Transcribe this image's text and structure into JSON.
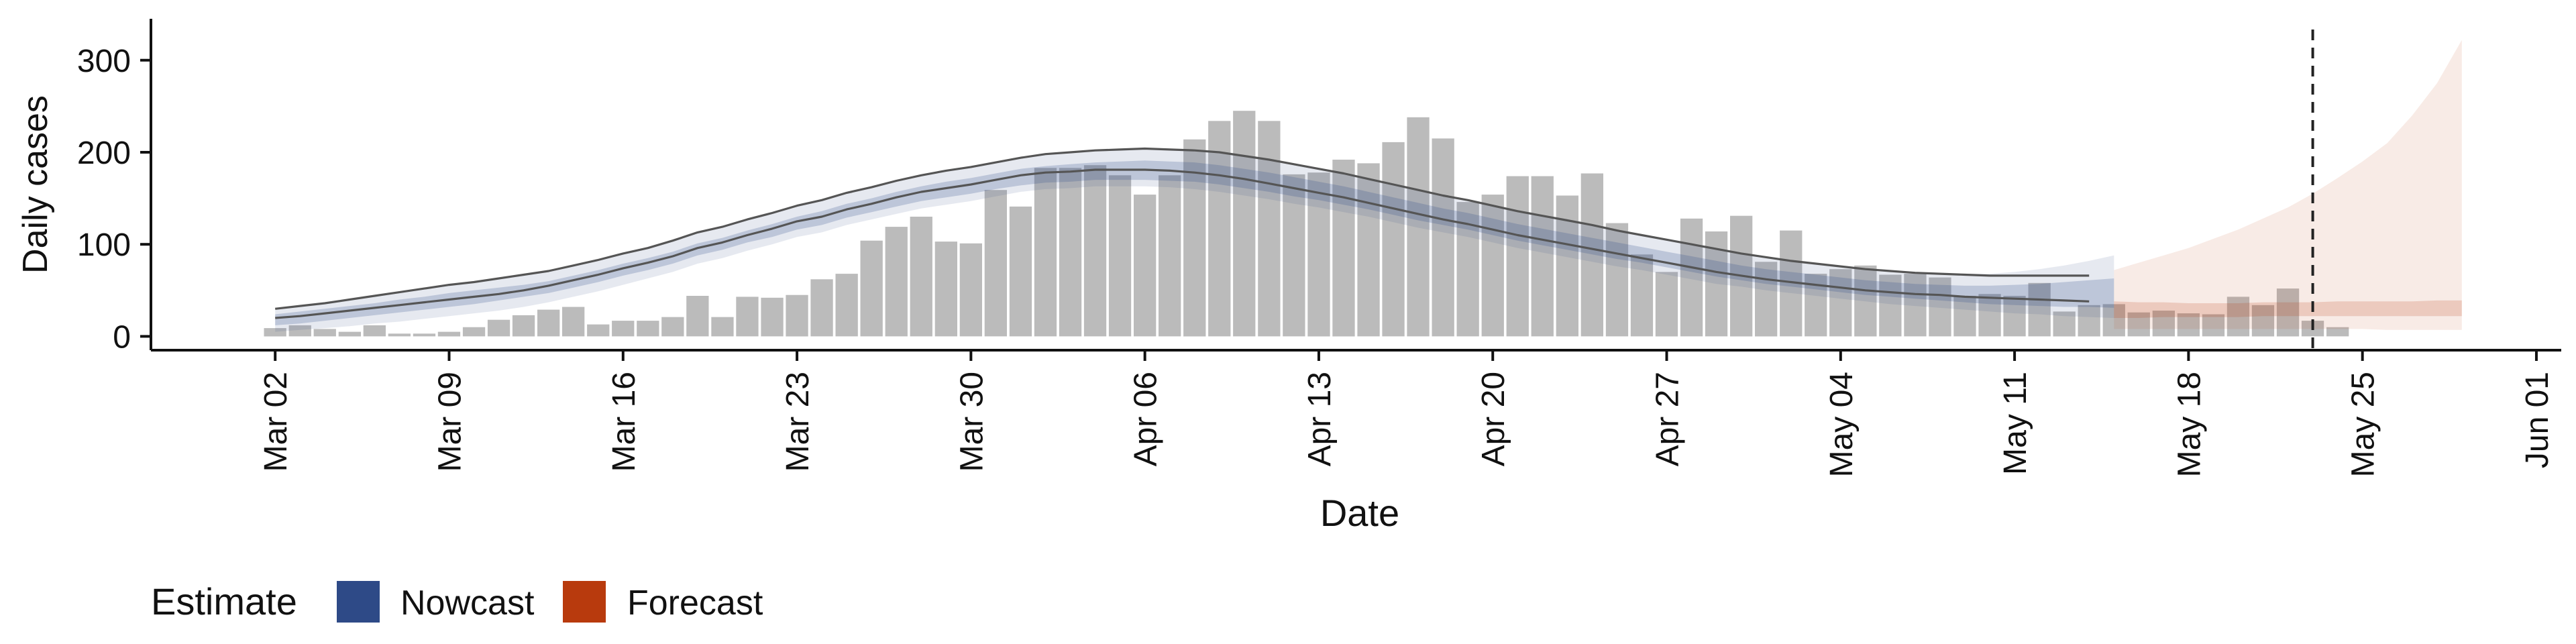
{
  "chart_data": {
    "type": "bar",
    "xlabel": "Date",
    "ylabel": "Daily cases",
    "x_range": [
      "2020-02-26",
      "2020-06-02"
    ],
    "ylim": [
      -15,
      345
    ],
    "y_ticks": [
      0,
      100,
      200,
      300
    ],
    "x_ticks": [
      {
        "date": "2020-03-02",
        "label": "Mar 02"
      },
      {
        "date": "2020-03-09",
        "label": "Mar 09"
      },
      {
        "date": "2020-03-16",
        "label": "Mar 16"
      },
      {
        "date": "2020-03-23",
        "label": "Mar 23"
      },
      {
        "date": "2020-03-30",
        "label": "Mar 30"
      },
      {
        "date": "2020-04-06",
        "label": "Apr 06"
      },
      {
        "date": "2020-04-13",
        "label": "Apr 13"
      },
      {
        "date": "2020-04-20",
        "label": "Apr 20"
      },
      {
        "date": "2020-04-27",
        "label": "Apr 27"
      },
      {
        "date": "2020-05-04",
        "label": "May 04"
      },
      {
        "date": "2020-05-11",
        "label": "May 11"
      },
      {
        "date": "2020-05-18",
        "label": "May 18"
      },
      {
        "date": "2020-05-25",
        "label": "May 25"
      },
      {
        "date": "2020-06-01",
        "label": "Jun 01"
      }
    ],
    "reported_cases": {
      "start_date": "2020-03-02",
      "values": [
        9,
        12,
        8,
        5,
        12,
        3,
        3,
        5,
        10,
        18,
        23,
        29,
        32,
        13,
        17,
        17,
        21,
        44,
        21,
        43,
        42,
        45,
        62,
        68,
        104,
        119,
        130,
        103,
        101,
        159,
        141,
        183,
        183,
        186,
        175,
        154,
        175,
        214,
        234,
        245,
        234,
        176,
        178,
        192,
        188,
        211,
        238,
        215,
        146,
        154,
        174,
        174,
        153,
        177,
        123,
        89,
        70,
        128,
        114,
        131,
        81,
        115,
        68,
        73,
        77,
        67,
        68,
        64,
        44,
        46,
        44,
        58,
        27,
        34,
        35,
        26,
        28,
        25,
        24,
        43,
        34,
        52,
        17,
        10
      ]
    },
    "nowcast": {
      "start_date": "2020-03-02",
      "end_date": "2020-05-15",
      "median": [
        18,
        20,
        23,
        26,
        29,
        33,
        36,
        39,
        42,
        45,
        49,
        53,
        59,
        65,
        72,
        78,
        85,
        94,
        100,
        108,
        115,
        123,
        128,
        136,
        142,
        149,
        155,
        159,
        163,
        168,
        173,
        176,
        177,
        179,
        180,
        180,
        179,
        178,
        175,
        171,
        167,
        162,
        157,
        152,
        147,
        141,
        135,
        129,
        124,
        118,
        112,
        107,
        102,
        97,
        92,
        87,
        82,
        77,
        72,
        68,
        64,
        61,
        58,
        55,
        52,
        50,
        48,
        46,
        44,
        43,
        43,
        43,
        43,
        44,
        44
      ],
      "inner_low": [
        12,
        14,
        17,
        20,
        23,
        26,
        29,
        32,
        35,
        39,
        43,
        47,
        53,
        59,
        66,
        72,
        79,
        88,
        94,
        102,
        108,
        116,
        121,
        129,
        135,
        141,
        147,
        151,
        155,
        160,
        164,
        167,
        168,
        170,
        170,
        170,
        169,
        168,
        165,
        161,
        157,
        152,
        148,
        143,
        138,
        132,
        126,
        121,
        116,
        110,
        104,
        99,
        94,
        89,
        84,
        80,
        75,
        70,
        65,
        61,
        57,
        54,
        51,
        48,
        45,
        43,
        41,
        39,
        37,
        35,
        34,
        33,
        32,
        32,
        31
      ],
      "inner_high": [
        24,
        27,
        30,
        33,
        36,
        40,
        43,
        47,
        50,
        53,
        56,
        60,
        66,
        72,
        79,
        85,
        92,
        101,
        107,
        115,
        122,
        130,
        136,
        144,
        150,
        157,
        163,
        168,
        172,
        177,
        182,
        185,
        187,
        189,
        190,
        191,
        190,
        189,
        186,
        182,
        178,
        173,
        168,
        163,
        157,
        151,
        145,
        139,
        134,
        128,
        122,
        117,
        112,
        107,
        102,
        97,
        92,
        87,
        82,
        77,
        73,
        70,
        67,
        64,
        61,
        59,
        57,
        56,
        55,
        55,
        56,
        57,
        59,
        61,
        63
      ],
      "outer_low": [
        5,
        7,
        9,
        11,
        14,
        16,
        19,
        22,
        25,
        28,
        32,
        37,
        43,
        49,
        56,
        63,
        70,
        79,
        85,
        93,
        100,
        108,
        113,
        121,
        127,
        133,
        139,
        143,
        147,
        152,
        157,
        160,
        161,
        163,
        163,
        163,
        162,
        160,
        157,
        153,
        149,
        144,
        140,
        135,
        130,
        124,
        118,
        113,
        108,
        102,
        96,
        91,
        86,
        81,
        76,
        72,
        67,
        62,
        57,
        54,
        50,
        47,
        44,
        41,
        38,
        35,
        33,
        31,
        29,
        27,
        25,
        24,
        22,
        21,
        20
      ],
      "outer_high": [
        30,
        33,
        36,
        40,
        44,
        48,
        52,
        56,
        59,
        63,
        67,
        71,
        77,
        83,
        90,
        96,
        104,
        113,
        119,
        127,
        134,
        142,
        148,
        156,
        162,
        169,
        175,
        180,
        184,
        189,
        194,
        198,
        200,
        202,
        203,
        204,
        203,
        202,
        200,
        196,
        192,
        187,
        182,
        177,
        171,
        165,
        159,
        153,
        148,
        142,
        136,
        131,
        126,
        121,
        115,
        110,
        105,
        100,
        95,
        90,
        86,
        82,
        79,
        76,
        73,
        71,
        69,
        68,
        68,
        68,
        70,
        73,
        77,
        82,
        88
      ],
      "lines_end_date": "2020-05-14",
      "outline_upper": [
        30,
        33,
        36,
        40,
        44,
        48,
        52,
        56,
        59,
        63,
        67,
        71,
        77,
        83,
        90,
        96,
        104,
        113,
        119,
        127,
        134,
        142,
        148,
        156,
        162,
        169,
        175,
        180,
        184,
        189,
        194,
        198,
        200,
        202,
        203,
        204,
        203,
        202,
        200,
        196,
        192,
        187,
        182,
        177,
        171,
        165,
        159,
        153,
        148,
        142,
        136,
        131,
        126,
        121,
        115,
        110,
        105,
        100,
        95,
        90,
        86,
        82,
        79,
        76,
        73,
        71,
        69,
        68,
        67,
        66,
        66,
        66,
        66,
        66
      ],
      "outline_lower": [
        20,
        22,
        25,
        28,
        31,
        34,
        37,
        40,
        43,
        46,
        50,
        55,
        61,
        67,
        74,
        80,
        87,
        96,
        102,
        110,
        117,
        125,
        130,
        138,
        144,
        151,
        157,
        161,
        165,
        170,
        175,
        178,
        179,
        181,
        181,
        181,
        180,
        178,
        175,
        171,
        166,
        161,
        156,
        151,
        145,
        139,
        133,
        127,
        122,
        116,
        110,
        105,
        100,
        95,
        90,
        85,
        80,
        75,
        70,
        66,
        62,
        59,
        56,
        53,
        50,
        48,
        46,
        45,
        43,
        42,
        41,
        40,
        39,
        38
      ]
    },
    "forecast": {
      "start_date": "2020-05-15",
      "end_date": "2020-05-29",
      "inner_low": [
        20,
        20,
        21,
        21,
        21,
        21,
        22,
        22,
        22,
        22,
        22,
        22,
        22,
        22,
        22
      ],
      "inner_high": [
        38,
        37,
        37,
        36,
        36,
        36,
        37,
        37,
        37,
        38,
        38,
        38,
        38,
        39,
        39
      ],
      "outer_low": [
        8,
        8,
        8,
        8,
        8,
        8,
        8,
        8,
        8,
        8,
        8,
        7,
        7,
        7,
        7
      ],
      "outer_high": [
        72,
        80,
        88,
        96,
        106,
        116,
        128,
        140,
        155,
        172,
        190,
        210,
        240,
        275,
        322
      ]
    },
    "vline_date": "2020-05-23",
    "legend": {
      "title": "Estimate",
      "position": "bottom-left",
      "items": [
        {
          "label": "Nowcast",
          "color": "#2e4a87"
        },
        {
          "label": "Forecast",
          "color": "#b83a0d"
        }
      ]
    },
    "colors": {
      "bar": "#bbbbbb",
      "nowcast": "#2e4a87",
      "forecast": "#b83a0d",
      "outline": "#555555",
      "vline": "#222222"
    },
    "grid": false
  }
}
